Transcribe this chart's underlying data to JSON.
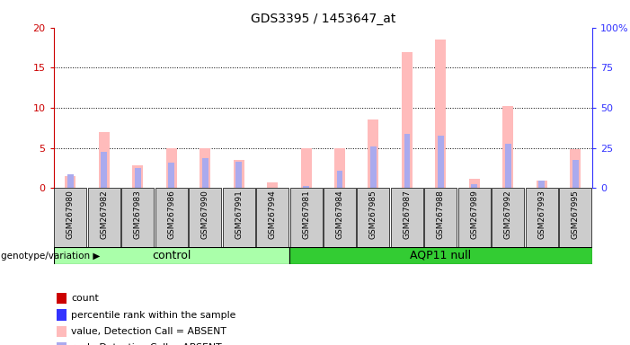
{
  "title": "GDS3395 / 1453647_at",
  "samples": [
    "GSM267980",
    "GSM267982",
    "GSM267983",
    "GSM267986",
    "GSM267990",
    "GSM267991",
    "GSM267994",
    "GSM267981",
    "GSM267984",
    "GSM267985",
    "GSM267987",
    "GSM267988",
    "GSM267989",
    "GSM267992",
    "GSM267993",
    "GSM267995"
  ],
  "groups": [
    "control",
    "control",
    "control",
    "control",
    "control",
    "control",
    "control",
    "AQP11 null",
    "AQP11 null",
    "AQP11 null",
    "AQP11 null",
    "AQP11 null",
    "AQP11 null",
    "AQP11 null",
    "AQP11 null",
    "AQP11 null"
  ],
  "n_control": 7,
  "n_aqp11": 9,
  "pink_bars": [
    1.5,
    7.0,
    2.8,
    5.0,
    5.0,
    3.5,
    0.7,
    5.0,
    5.0,
    8.5,
    17.0,
    18.5,
    1.2,
    10.2,
    0.9,
    4.8
  ],
  "blue_bars": [
    1.7,
    4.5,
    2.5,
    3.2,
    3.7,
    3.3,
    0.05,
    0.2,
    2.2,
    5.2,
    6.8,
    6.5,
    0.5,
    5.5,
    0.9,
    3.5
  ],
  "ylim_left": [
    0,
    20
  ],
  "ylim_right": [
    0,
    100
  ],
  "yticks_left": [
    0,
    5,
    10,
    15,
    20
  ],
  "yticks_right": [
    0,
    25,
    50,
    75,
    100
  ],
  "ylabel_left_color": "#cc0000",
  "ylabel_right_color": "#3333ff",
  "pink_color": "#ffbbbb",
  "blue_color": "#aaaaee",
  "control_color": "#aaffaa",
  "aqp11_color": "#33cc33",
  "tick_bg_color": "#cccccc",
  "legend_items": [
    "count",
    "percentile rank within the sample",
    "value, Detection Call = ABSENT",
    "rank, Detection Call = ABSENT"
  ],
  "legend_colors": [
    "#cc0000",
    "#3333ff",
    "#ffbbbb",
    "#aaaaee"
  ],
  "legend_marker_sizes": [
    6,
    6,
    10,
    10
  ]
}
